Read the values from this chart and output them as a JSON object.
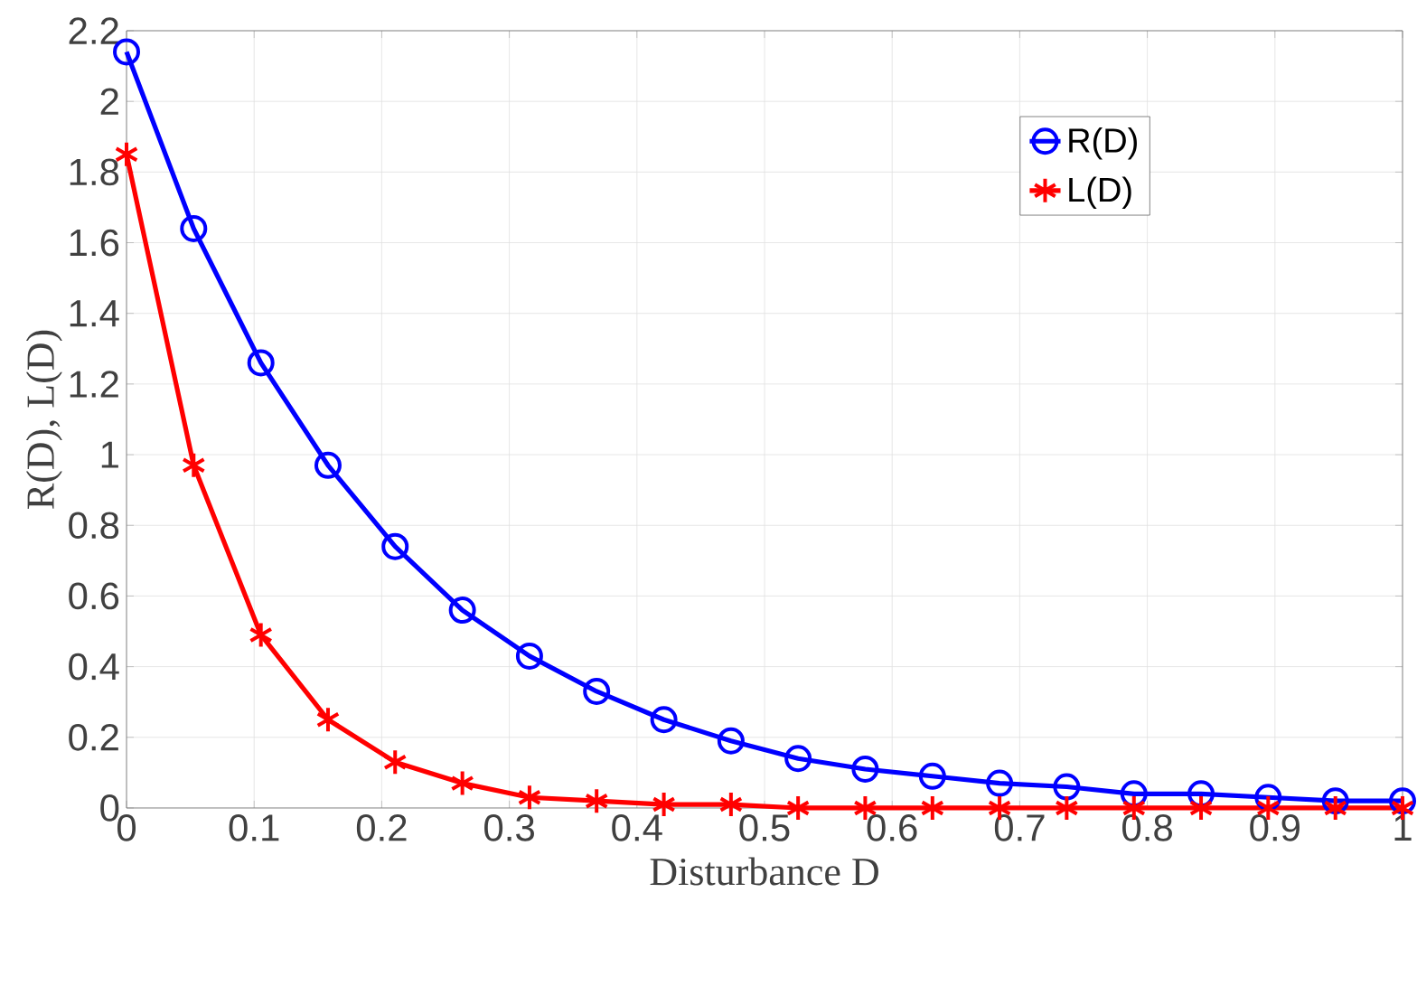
{
  "chart_data": {
    "type": "line",
    "xlabel": "Disturbance D",
    "ylabel": "R(D), L(D)",
    "x": [
      0,
      0.0526,
      0.1053,
      0.1579,
      0.2105,
      0.2632,
      0.3158,
      0.3684,
      0.4211,
      0.4737,
      0.5263,
      0.5789,
      0.6316,
      0.6842,
      0.7368,
      0.7895,
      0.8421,
      0.8947,
      0.9474,
      1
    ],
    "series": [
      {
        "name": "R(D)",
        "color": "#0000ff",
        "marker": "circle",
        "values": [
          2.14,
          1.64,
          1.26,
          0.97,
          0.74,
          0.56,
          0.43,
          0.33,
          0.25,
          0.19,
          0.14,
          0.11,
          0.09,
          0.07,
          0.06,
          0.04,
          0.04,
          0.03,
          0.02,
          0.02
        ]
      },
      {
        "name": "L(D)",
        "color": "#ff0000",
        "marker": "cross",
        "values": [
          1.85,
          0.97,
          0.49,
          0.25,
          0.13,
          0.07,
          0.03,
          0.02,
          0.01,
          0.01,
          0,
          0,
          0,
          0,
          0,
          0,
          0,
          0,
          0,
          0
        ]
      }
    ],
    "xlim": [
      0,
      1
    ],
    "xticks": [
      0,
      0.1,
      0.2,
      0.3,
      0.4,
      0.5,
      0.6,
      0.7,
      0.8,
      0.9,
      1
    ],
    "ylim": [
      0,
      2.2
    ],
    "yticks": [
      0,
      0.2,
      0.4,
      0.6,
      0.8,
      1,
      1.2,
      1.4,
      1.6,
      1.8,
      2,
      2.2
    ],
    "grid": true,
    "legend": "top right",
    "line_style": "solid"
  }
}
